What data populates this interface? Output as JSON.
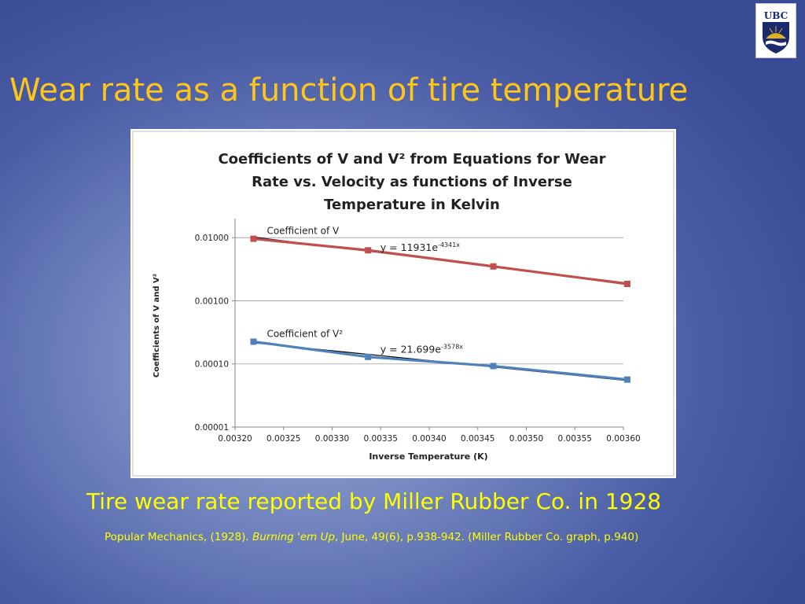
{
  "slide": {
    "title": "Wear rate as a function of tire temperature",
    "caption": "Tire wear rate reported by Miller Rubber Co.  in 1928",
    "citation": {
      "pre": "Popular Mechanics, (1928). ",
      "italic": "Burning 'em Up",
      "post": ", June, 49(6), p.938-942. (Miller Rubber Co. graph, p.940)"
    },
    "logo_text": "UBC"
  },
  "colors": {
    "title": "#ffc61a",
    "caption": "#ffff00",
    "series_v": "#c0504d",
    "series_v2": "#4f81bd",
    "trendline": "#000000"
  },
  "chart_data": {
    "type": "scatter",
    "title_lines": [
      "Coefficients of V and V² from Equations for Wear",
      "Rate vs. Velocity as functions of Inverse",
      "Temperature in Kelvin"
    ],
    "xlabel": "Inverse Temperature (K)",
    "ylabel": "Coefficients of V and V²",
    "y_scale": "log",
    "xlim": [
      0.0032,
      0.0036
    ],
    "ylim": [
      1e-05,
      0.02
    ],
    "grid": true,
    "x_ticks": [
      "0.00320",
      "0.00325",
      "0.00330",
      "0.00335",
      "0.00340",
      "0.00345",
      "0.00350",
      "0.00355",
      "0.00360"
    ],
    "x_tick_values": [
      0.0032,
      0.00325,
      0.0033,
      0.00335,
      0.0034,
      0.00345,
      0.0035,
      0.00355,
      0.0036
    ],
    "y_ticks": [
      "0.01000",
      "0.00100",
      "0.00010",
      "0.00001"
    ],
    "y_tick_values": [
      0.01,
      0.001,
      0.0001,
      1e-05
    ],
    "series": [
      {
        "name": "Coefficient of V",
        "x": [
          0.003219,
          0.003337,
          0.003466,
          0.003604
        ],
        "y": [
          0.0096,
          0.0063,
          0.0035,
          0.00185
        ],
        "trendline": {
          "label": "y = 11931e",
          "exponent": "-4341x",
          "a": 11931,
          "b": -4341
        }
      },
      {
        "name": "Coefficient of V²",
        "x": [
          0.003219,
          0.003337,
          0.003466,
          0.003604
        ],
        "y": [
          0.000225,
          0.000129,
          9.25e-05,
          5.65e-05
        ],
        "trendline": {
          "label": "y = 21.699e",
          "exponent": "-3578x",
          "a": 21.699,
          "b": -3578
        }
      }
    ]
  }
}
